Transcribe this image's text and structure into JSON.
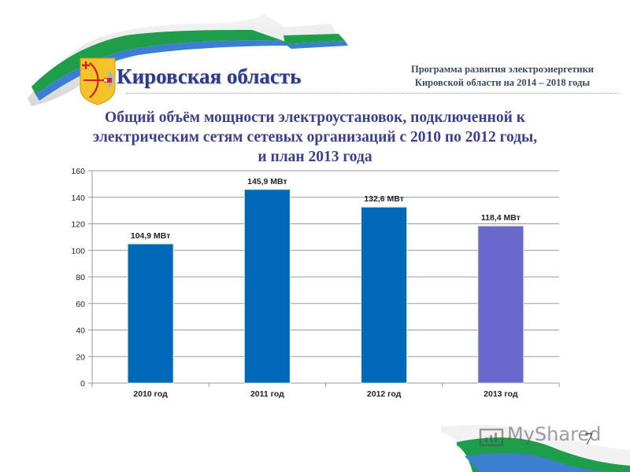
{
  "header": {
    "region_title": "Кировская область",
    "program_title_line1": "Программа развития электроэнергетики",
    "program_title_line2": "Кировской области на 2014 – 2018 годы",
    "emblem_icon": "coat-of-arms-kirov-icon"
  },
  "slide": {
    "title_line1": "Общий объём мощности электроустановок, подключенной к",
    "title_line2": "электрическим сетям сетевых организаций с 2010 по 2012 годы,",
    "title_line3": "и план 2013 года",
    "page_number": "7"
  },
  "watermark": {
    "text": "MyShared",
    "icon": "myshared-logo-icon"
  },
  "colors": {
    "bar_actual": "#0068B8",
    "bar_plan": "#6A68CC",
    "bar_border": "#D6F0C0",
    "gridline": "#9A9A9A",
    "axis_text": "#222222",
    "title_color": "#3B3F8F",
    "ribbon_green": "#1E9E4A",
    "ribbon_blue": "#3C7FD0"
  },
  "chart_data": {
    "type": "bar",
    "title": "Общий объём мощности электроустановок, подключенной к электрическим сетям сетевых организаций с 2010 по 2012 годы, и план 2013 года",
    "categories": [
      "2010 год",
      "2011 год",
      "2012 год",
      "2013 год"
    ],
    "values": [
      104.9,
      145.9,
      132.6,
      118.4
    ],
    "data_labels": [
      "104,9 МВт",
      "145,9 МВт",
      "132,6 МВт",
      "118,4 МВт"
    ],
    "unit": "МВт",
    "xlabel": "",
    "ylabel": "",
    "ylim": [
      0,
      160
    ],
    "yticks": [
      0,
      20,
      40,
      60,
      80,
      100,
      120,
      140,
      160
    ],
    "grid": true,
    "legend": "none",
    "bar_colors": [
      "#0068B8",
      "#0068B8",
      "#0068B8",
      "#6A68CC"
    ]
  }
}
